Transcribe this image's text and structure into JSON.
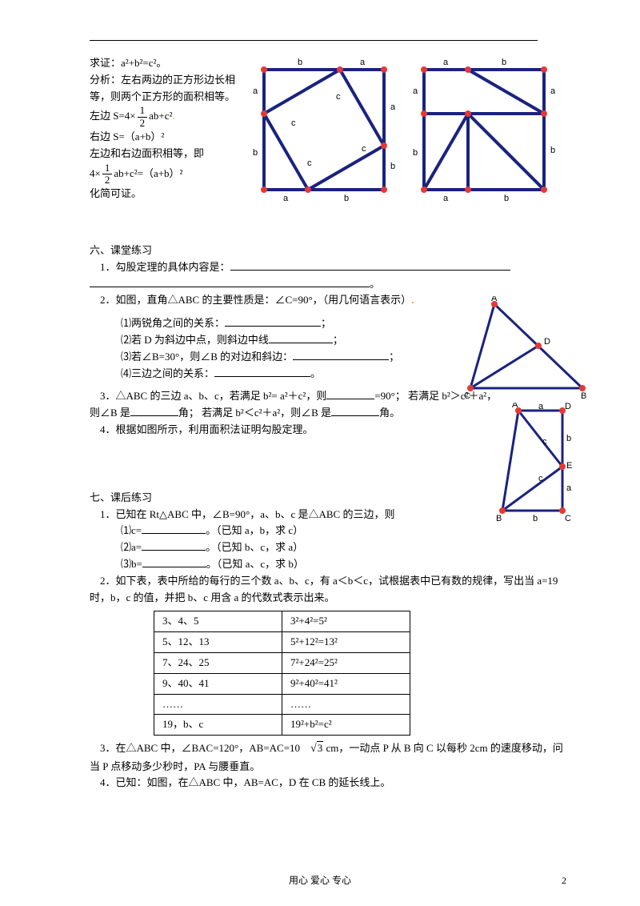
{
  "proof": {
    "line1": "求证：a²+b²=c²。",
    "line2": "分析：左右两边的正方形边长相等，则两个正方形的面积相等。",
    "line3_pre": "左边 S=4×",
    "line3_frac_n": "1",
    "line3_frac_d": "2",
    "line3_post": "ab+c²",
    "line4": "右边 S=（a+b）²",
    "line5": "左边和右边面积相等，即",
    "line6_pre": "4×",
    "line6_frac_n": "1",
    "line6_frac_d": "2",
    "line6_post": "ab+c²=（a+b）²",
    "line7": "化简可证。"
  },
  "sec6": {
    "title": "六、课堂练习",
    "q1": "1．勾股定理的具体内容是：",
    "period": "。",
    "q2": "2．如图，直角△ABC 的主要性质是：∠C=90°，（用几何语言表示）",
    "q2_1": "⑴两锐角之间的关系：",
    "q2_1_end": "；",
    "q2_2": "⑵若 D 为斜边中点，则斜边中线",
    "q2_2_end": "；",
    "q2_3": "⑶若∠B=30°，则∠B 的对边和斜边：",
    "q2_3_end": "；",
    "q2_4": "⑷三边之间的关系：",
    "q2_4_end": "。",
    "q3_1": "3．△ABC 的三边 a、b、c，若满足 b²= a²＋c²，则",
    "q3_2": "=90°； 若满足 b²＞c²＋a²，",
    "q3_3": "则∠B 是",
    "q3_4": "角； 若满足 b²＜c²＋a²，则∠B 是",
    "q3_5": "角。",
    "q4": "4．根据如图所示，利用面积法证明勾股定理。"
  },
  "sec7": {
    "title": "七、课后练习",
    "q1": "1．已知在 Rt△ABC 中，∠B=90°，a、b、c 是△ABC 的三边，则",
    "q1_1_pre": "⑴c=",
    "q1_1_post": "。（已知 a，b，求 c）",
    "q1_2_pre": "⑵a=",
    "q1_2_post": "。（已知 b、c，求 a）",
    "q1_3_pre": "⑶b=",
    "q1_3_post": "。（已知 a、c，求 b）",
    "q2": "2．如下表，表中所给的每行的三个数 a、b、c，有 a＜b＜c，试根据表中已有数的规律，写出当 a=19 时，b，c 的值，并把 b、c 用含 a 的代数式表示出来。",
    "q3_1": "3．在△ABC 中，∠BAC=120°，AB=AC=10",
    "q3_sqrt": "3",
    "q3_2": " cm，一动点 P 从 B 向 C 以每秒 2cm 的速度移动，问当 P 点移动多少秒时，PA 与腰垂直。",
    "q4": "4．已知：如图，在△ABC 中，AB=AC，D 在 CB 的延长线上。"
  },
  "table": {
    "rows": [
      [
        "3、4、5",
        "3²+4²=5²"
      ],
      [
        "5、12、13",
        "5²+12²=13²"
      ],
      [
        "7、24、25",
        "7²+24²=25²"
      ],
      [
        "9、40、41",
        "9²+40²=41²"
      ],
      [
        "……",
        "……"
      ],
      [
        "19，b、c",
        "19²+b²=c²"
      ]
    ]
  },
  "footer": "用心   爱心   专心",
  "page_num": "2",
  "labels": {
    "a": "a",
    "b": "b",
    "c": "c",
    "A": "A",
    "B": "B",
    "C": "C",
    "D": "D",
    "E": "E"
  }
}
